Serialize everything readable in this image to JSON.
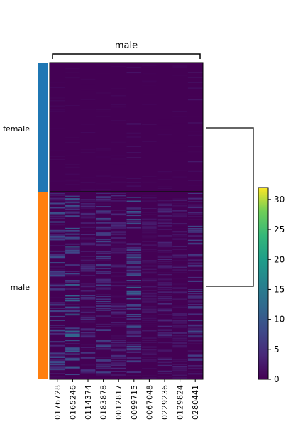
{
  "chart_data": {
    "type": "heatmap",
    "group_bracket_label": "male",
    "row_groups": [
      {
        "name": "female",
        "color": "#1f77b4",
        "fraction": 0.41
      },
      {
        "name": "male",
        "color": "#ff7f0e",
        "fraction": 0.59
      }
    ],
    "genes": [
      "0176728",
      "0165246",
      "0114374",
      "0183878",
      "0012817",
      "0099715",
      "0067048",
      "0229236",
      "0129824",
      "0280441"
    ],
    "colorbar": {
      "colormap": "viridis",
      "vmin": 0,
      "vmax": 32,
      "ticks": [
        "0",
        "5",
        "10",
        "15",
        "20",
        "25",
        "30"
      ],
      "tick_values": [
        0,
        5,
        10,
        15,
        20,
        25,
        30
      ]
    },
    "dendrogram": {
      "leaves": [
        "female",
        "male"
      ],
      "linked": true
    },
    "values": {
      "female_mean": [
        0.1,
        0.1,
        0.1,
        0.1,
        0.1,
        0.2,
        0.1,
        0.1,
        0.1,
        0.3
      ],
      "male_mean": [
        4.0,
        5.0,
        2.5,
        3.5,
        2.0,
        4.5,
        1.2,
        2.0,
        1.5,
        3.5
      ]
    }
  }
}
